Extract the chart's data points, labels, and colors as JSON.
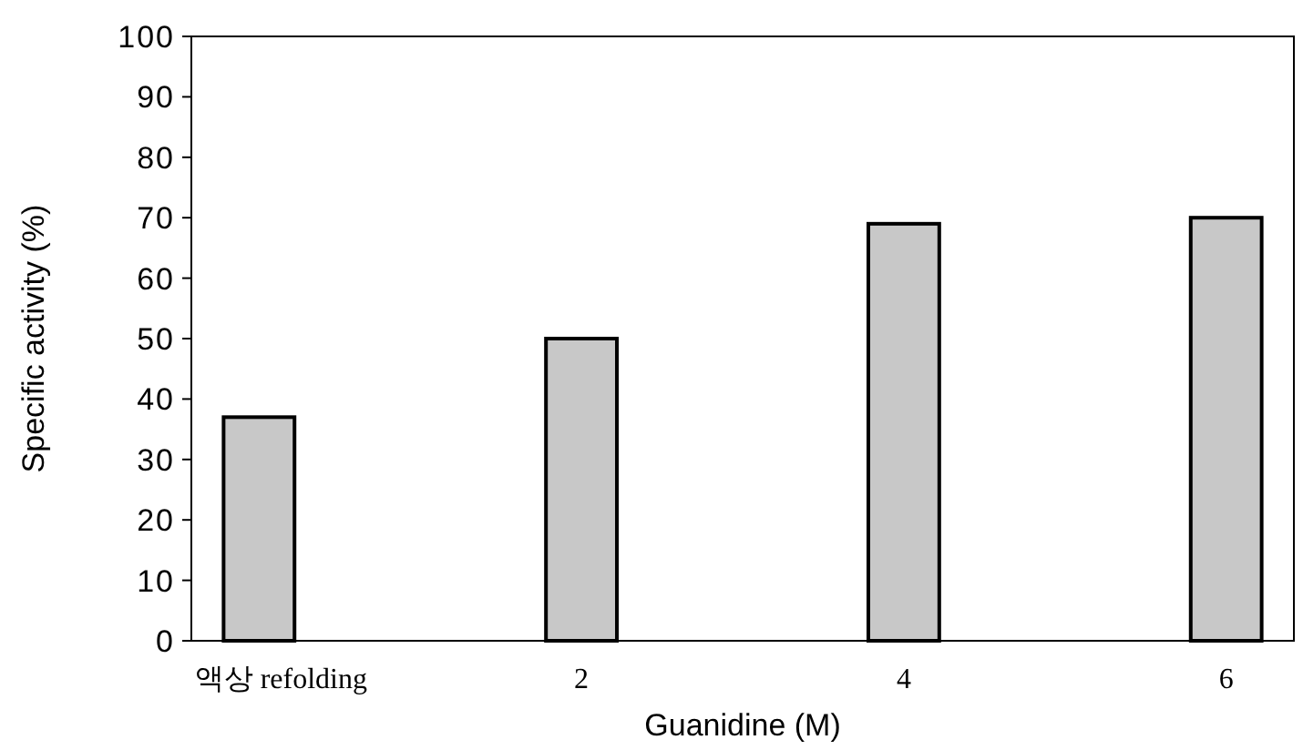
{
  "chart_data": {
    "type": "bar",
    "xlabel": "Guanidine (M)",
    "ylabel": "Specific activity (%)",
    "categories": [
      "액상 refolding",
      "2",
      "4",
      "6"
    ],
    "values": [
      37,
      50,
      69,
      70
    ],
    "color": "#c8c8c8",
    "ylim": [
      0,
      100
    ],
    "yticks": [
      0,
      10,
      20,
      30,
      40,
      50,
      60,
      70,
      80,
      90,
      100
    ],
    "grid": false
  }
}
